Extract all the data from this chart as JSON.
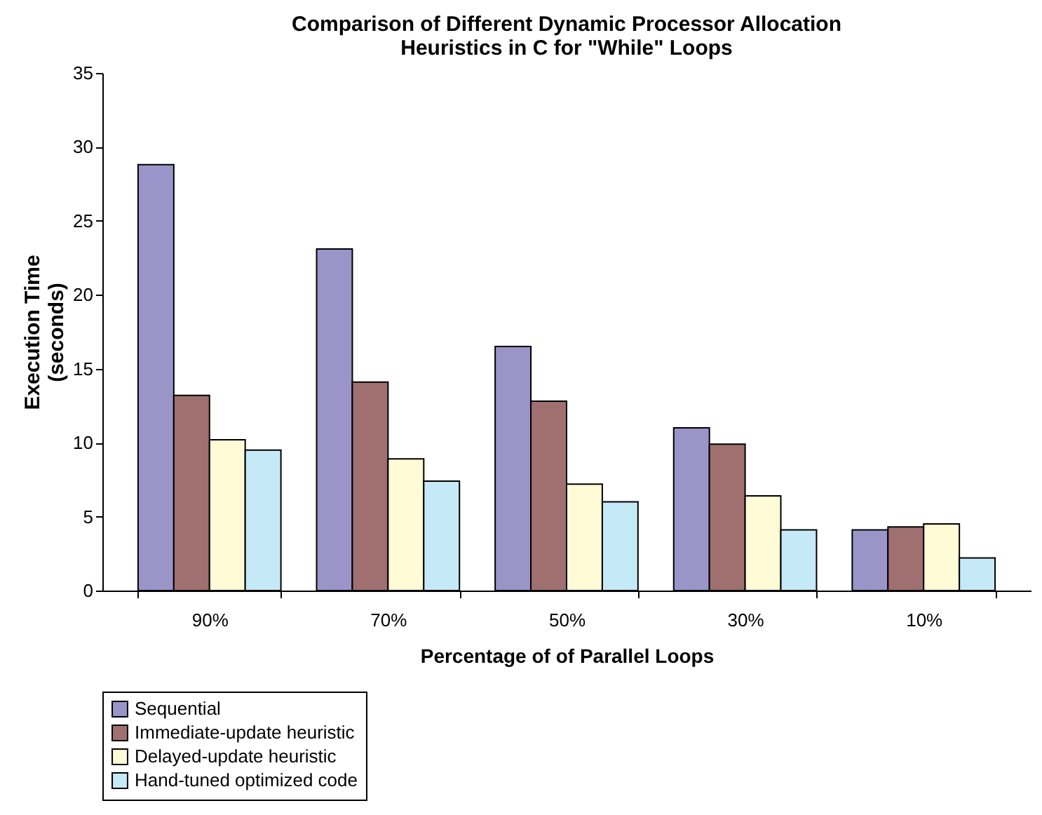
{
  "chart_data": {
    "type": "bar",
    "title": "Comparison of Different Dynamic Processor Allocation Heuristics in C for \"While\" Loops",
    "xlabel": "Percentage of  of Parallel Loops",
    "ylabel": "Execution Time (seconds)",
    "categories": [
      "90%",
      "70%",
      "50%",
      "30%",
      "10%"
    ],
    "series": [
      {
        "name": "Sequential",
        "color": "#9b94c8",
        "values": [
          28.8,
          23.1,
          16.5,
          11.0,
          4.1
        ]
      },
      {
        "name": "Immediate-update heuristic",
        "color": "#a07070",
        "values": [
          13.2,
          14.1,
          12.8,
          9.9,
          4.3
        ]
      },
      {
        "name": "Delayed-update heuristic",
        "color": "#fffbd6",
        "values": [
          10.2,
          8.9,
          7.2,
          6.4,
          4.5
        ]
      },
      {
        "name": "Hand-tuned optimized code",
        "color": "#c6e9f8",
        "values": [
          9.5,
          7.4,
          6.0,
          4.1,
          2.2
        ]
      }
    ],
    "ylim": [
      0,
      35
    ],
    "yticks": [
      0,
      5,
      10,
      15,
      20,
      25,
      30,
      35
    ],
    "grid": false,
    "legend": "bottom"
  }
}
